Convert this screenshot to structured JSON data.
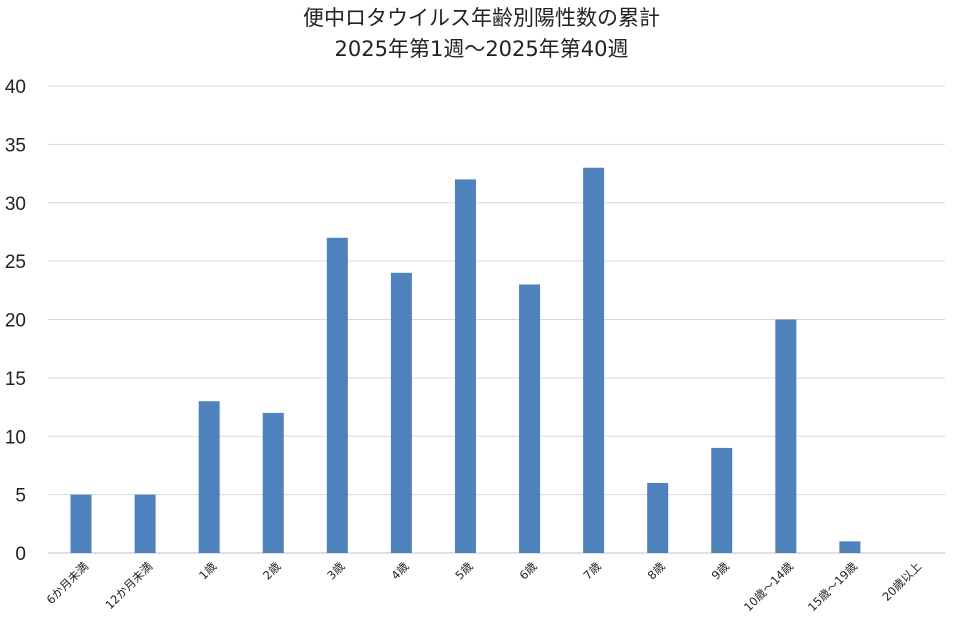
{
  "chart_data": {
    "type": "bar",
    "title": "便中ロタウイルス年齢別陽性数の累計",
    "subtitle": "2025年第1週～2025年第40週",
    "xlabel": "",
    "ylabel": "",
    "categories": [
      "6か月未満",
      "12か月未満",
      "1歳",
      "2歳",
      "3歳",
      "4歳",
      "5歳",
      "6歳",
      "7歳",
      "8歳",
      "9歳",
      "10歳～14歳",
      "15歳～19歳",
      "20歳以上"
    ],
    "values": [
      5,
      5,
      13,
      12,
      27,
      24,
      32,
      23,
      33,
      6,
      9,
      20,
      1,
      0
    ],
    "ylim": [
      0,
      40
    ],
    "yticks": [
      0,
      5,
      10,
      15,
      20,
      25,
      30,
      35,
      40
    ],
    "grid": true,
    "legend": "none",
    "bar_color": "#4F81BD",
    "grid_color": "#D9D9D9"
  }
}
